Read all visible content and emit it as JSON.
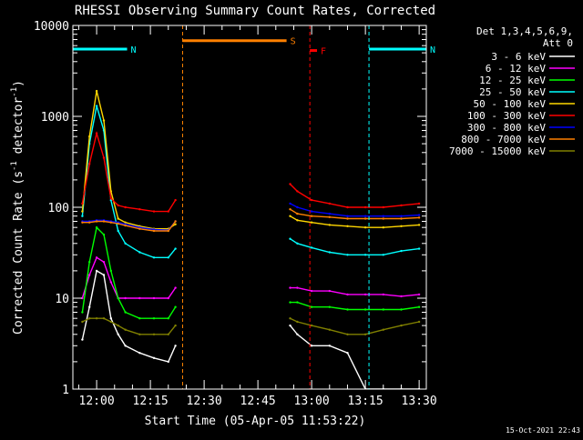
{
  "chart_data": {
    "type": "line",
    "title": "RHESSI Observing Summary Count Rates, Corrected",
    "xlabel": "Start Time (05-Apr-05 11:53:22)",
    "ylabel": "Corrected Count Rate (s⁻¹ detector⁻¹)",
    "ylabel_parts": [
      "Corrected Count Rate (s",
      "-1",
      " detector",
      "-1",
      ")"
    ],
    "yscale": "log",
    "xlim": [
      "11:53:22",
      "13:32"
    ],
    "ylim": [
      1,
      10000
    ],
    "x_ticks": [
      "12:00",
      "12:15",
      "12:30",
      "12:45",
      "13:00",
      "13:15",
      "13:30"
    ],
    "y_ticks": [
      "1",
      "10",
      "100",
      "1000",
      "10000"
    ],
    "legend": {
      "header": [
        "Det 1,3,4,5,6,9,",
        "Att 0"
      ],
      "placement": "right"
    },
    "footer": "15-Oct-2021 22:43",
    "annotations": [
      {
        "label": "N",
        "color": "#00ffff",
        "span": [
          "11:53:22",
          "12:08:30"
        ],
        "level": 5500
      },
      {
        "label": "N",
        "color": "#00ffff",
        "span": [
          "13:16",
          "13:32"
        ],
        "level": 5500
      },
      {
        "label": "S",
        "color": "#ff8000",
        "span": [
          "12:24",
          "12:53"
        ],
        "level": 6800
      },
      {
        "label": "F",
        "color": "#ff0000",
        "span": [
          "12:59:30",
          "13:01:30"
        ],
        "level": 5300
      }
    ],
    "series": [
      {
        "name": "3 - 6 keV",
        "color": "#ffffff",
        "x": [
          "11:56",
          "11:58",
          "12:00",
          "12:02",
          "12:04",
          "12:06",
          "12:08",
          "12:12",
          "12:16",
          "12:20",
          "12:22",
          "12:54",
          "12:56",
          "13:00",
          "13:05",
          "13:10",
          "13:15",
          "13:20",
          "13:25",
          "13:30"
        ],
        "y": [
          3.5,
          8,
          20,
          18,
          6,
          4,
          3,
          2.5,
          2.2,
          2,
          3,
          5,
          4,
          3,
          3,
          2.5,
          1,
          1,
          1,
          1
        ]
      },
      {
        "name": "6 - 12 keV",
        "color": "#ff00ff",
        "x": [
          "11:56",
          "11:58",
          "12:00",
          "12:02",
          "12:04",
          "12:06",
          "12:08",
          "12:12",
          "12:16",
          "12:20",
          "12:22",
          "12:54",
          "12:56",
          "13:00",
          "13:05",
          "13:10",
          "13:15",
          "13:20",
          "13:25",
          "13:30"
        ],
        "y": [
          10,
          18,
          28,
          25,
          15,
          10,
          10,
          10,
          10,
          10,
          13,
          13,
          13,
          12,
          12,
          11,
          11,
          11,
          10.5,
          11
        ]
      },
      {
        "name": "12 - 25 keV",
        "color": "#00ff00",
        "x": [
          "11:56",
          "11:58",
          "12:00",
          "12:02",
          "12:04",
          "12:06",
          "12:08",
          "12:12",
          "12:16",
          "12:20",
          "12:22",
          "12:54",
          "12:56",
          "13:00",
          "13:05",
          "13:10",
          "13:15",
          "13:20",
          "13:25",
          "13:30"
        ],
        "y": [
          7,
          25,
          60,
          50,
          20,
          10,
          7,
          6,
          6,
          6,
          8,
          9,
          9,
          8,
          8,
          7.5,
          7.5,
          7.5,
          7.5,
          8
        ]
      },
      {
        "name": "25 - 50 keV",
        "color": "#00ffff",
        "x": [
          "11:56",
          "11:58",
          "12:00",
          "12:02",
          "12:04",
          "12:06",
          "12:08",
          "12:12",
          "12:16",
          "12:20",
          "12:22",
          "12:54",
          "12:56",
          "13:00",
          "13:05",
          "13:10",
          "13:15",
          "13:20",
          "13:25",
          "13:30"
        ],
        "y": [
          80,
          500,
          1300,
          700,
          120,
          55,
          40,
          32,
          28,
          28,
          35,
          45,
          40,
          36,
          32,
          30,
          30,
          30,
          33,
          35
        ]
      },
      {
        "name": "50 - 100 keV",
        "color": "#ffd700",
        "x": [
          "11:56",
          "11:58",
          "12:00",
          "12:02",
          "12:04",
          "12:06",
          "12:08",
          "12:12",
          "12:16",
          "12:20",
          "12:22",
          "12:54",
          "12:56",
          "13:00",
          "13:05",
          "13:10",
          "13:15",
          "13:20",
          "13:25",
          "13:30"
        ],
        "y": [
          90,
          600,
          1900,
          900,
          150,
          75,
          68,
          62,
          58,
          58,
          65,
          80,
          72,
          68,
          64,
          62,
          60,
          60,
          62,
          64
        ]
      },
      {
        "name": "100 - 300 keV",
        "color": "#ff0000",
        "x": [
          "11:56",
          "11:58",
          "12:00",
          "12:02",
          "12:04",
          "12:06",
          "12:08",
          "12:12",
          "12:16",
          "12:20",
          "12:22",
          "12:54",
          "12:56",
          "13:00",
          "13:05",
          "13:10",
          "13:15",
          "13:20",
          "13:25",
          "13:30"
        ],
        "y": [
          110,
          300,
          650,
          350,
          125,
          105,
          100,
          95,
          90,
          90,
          120,
          180,
          150,
          120,
          110,
          100,
          100,
          100,
          105,
          110
        ]
      },
      {
        "name": "300 - 800 keV",
        "color": "#0000ff",
        "x": [
          "11:56",
          "11:58",
          "12:00",
          "12:02",
          "12:04",
          "12:06",
          "12:08",
          "12:12",
          "12:16",
          "12:20",
          "12:22",
          "12:54",
          "12:56",
          "13:00",
          "13:05",
          "13:10",
          "13:15",
          "13:20",
          "13:25",
          "13:30"
        ],
        "y": [
          70,
          70,
          72,
          72,
          70,
          68,
          65,
          60,
          57,
          56,
          70,
          110,
          100,
          90,
          85,
          80,
          80,
          80,
          80,
          82
        ]
      },
      {
        "name": "800 - 7000 keV",
        "color": "#ff8000",
        "x": [
          "11:56",
          "11:58",
          "12:00",
          "12:02",
          "12:04",
          "12:06",
          "12:08",
          "12:12",
          "12:16",
          "12:20",
          "12:22",
          "12:54",
          "12:56",
          "13:00",
          "13:05",
          "13:10",
          "13:15",
          "13:20",
          "13:25",
          "13:30"
        ],
        "y": [
          68,
          68,
          70,
          70,
          68,
          66,
          63,
          58,
          55,
          55,
          70,
          95,
          85,
          80,
          78,
          75,
          75,
          75,
          75,
          77
        ]
      },
      {
        "name": "7000 - 15000 keV",
        "color": "#808000",
        "x": [
          "11:56",
          "11:58",
          "12:00",
          "12:02",
          "12:04",
          "12:06",
          "12:08",
          "12:12",
          "12:16",
          "12:20",
          "12:22",
          "12:54",
          "12:56",
          "13:00",
          "13:05",
          "13:10",
          "13:15",
          "13:20",
          "13:25",
          "13:30"
        ],
        "y": [
          5.5,
          6,
          6,
          6,
          5.5,
          5,
          4.5,
          4,
          4,
          4,
          5,
          6,
          5.5,
          5,
          4.5,
          4,
          4,
          4.5,
          5,
          5.5
        ]
      }
    ]
  }
}
